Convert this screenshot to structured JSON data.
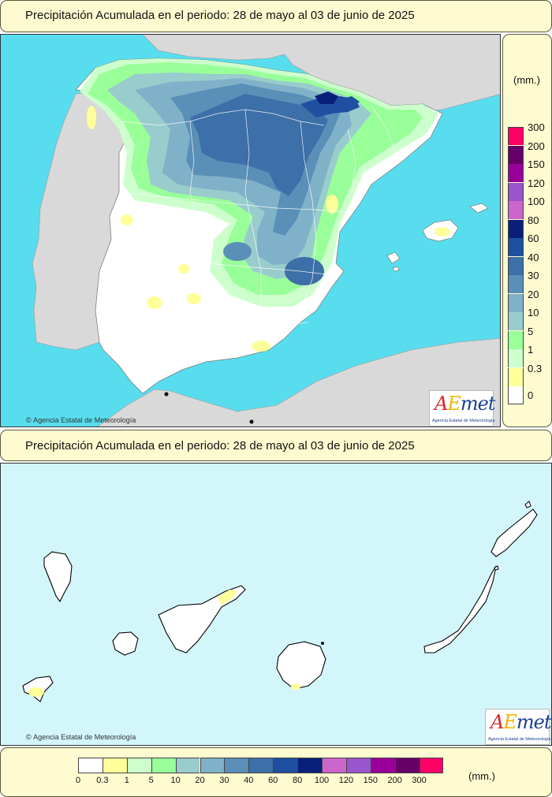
{
  "header_top": {
    "title": "Precipitación Acumulada en el periodo: 28 de mayo al 03 de junio de 2025"
  },
  "header_bottom": {
    "title": "Precipitación Acumulada en el periodo: 28 de mayo al 03 de junio de 2025"
  },
  "legend": {
    "unit": "(mm.)",
    "classes": [
      {
        "label": "0",
        "color": "#ffffff"
      },
      {
        "label": "0.3",
        "color": "#ffff99"
      },
      {
        "label": "1",
        "color": "#ccffcc"
      },
      {
        "label": "5",
        "color": "#99ff99"
      },
      {
        "label": "10",
        "color": "#99cccc"
      },
      {
        "label": "20",
        "color": "#7fb2c8"
      },
      {
        "label": "30",
        "color": "#5a8fb8"
      },
      {
        "label": "40",
        "color": "#3d6fa8"
      },
      {
        "label": "60",
        "color": "#1f4fa0"
      },
      {
        "label": "80",
        "color": "#0a1f7a"
      },
      {
        "label": "100",
        "color": "#cc66cc"
      },
      {
        "label": "120",
        "color": "#9955cc"
      },
      {
        "label": "150",
        "color": "#990099"
      },
      {
        "label": "200",
        "color": "#660066"
      },
      {
        "label": "300",
        "color": "#ff0066"
      }
    ]
  },
  "credits": {
    "copyright_top": "Agencia Estatal de Meteorología",
    "copyright_bottom": "Agencia Estatal de Meteorología",
    "logo_text": "AEmet",
    "logo_subtitle": "Agencia Estatal de Meteorología"
  },
  "colors": {
    "sea": "#58ddee",
    "land_outside": "#d9d9d9",
    "canary_sea": "#d3f6fb",
    "panel": "#fffbd0"
  }
}
